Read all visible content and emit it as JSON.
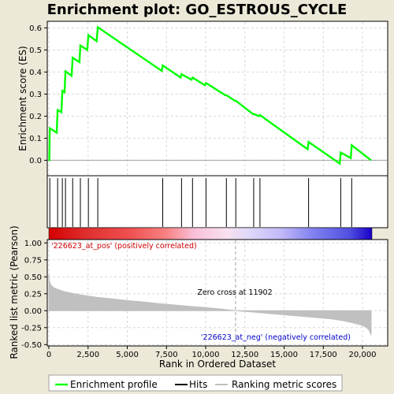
{
  "title": "Enrichment plot: GO_ESTROUS_CYCLE",
  "colors": {
    "background": "#ece9d8",
    "panel": "#ffffff",
    "es_line": "#00ff00",
    "hits": "#000000",
    "metric_fill": "#c0c0c0",
    "grid": "#d8d8d8",
    "zero_line": "#a0a0a0",
    "pos_text": "#cc0000",
    "neg_text": "#0000cc"
  },
  "chart_data": [
    {
      "type": "line",
      "panel": "enrichment-profile",
      "ylabel": "Enrichment score (ES)",
      "xlim": [
        0,
        20600
      ],
      "ylim": [
        -0.07,
        0.63
      ],
      "yticks": [
        "0.0",
        "0.1",
        "0.2",
        "0.3",
        "0.4",
        "0.5",
        "0.6"
      ],
      "grid": true,
      "series": [
        {
          "name": "Enrichment profile",
          "x": [
            0,
            30,
            60,
            500,
            560,
            800,
            860,
            1000,
            1060,
            1450,
            1520,
            1950,
            2010,
            2450,
            2520,
            3050,
            3120,
            7200,
            7260,
            8400,
            8460,
            9100,
            9160,
            9950,
            10020,
            11250,
            11320,
            11850,
            11920,
            13000,
            13060,
            13400,
            13460,
            16500,
            16560,
            18550,
            18610,
            19250,
            19310,
            20550
          ],
          "values": [
            0.0,
            0.0,
            0.145,
            0.125,
            0.228,
            0.218,
            0.315,
            0.308,
            0.403,
            0.383,
            0.465,
            0.445,
            0.52,
            0.5,
            0.567,
            0.54,
            0.603,
            0.405,
            0.43,
            0.375,
            0.39,
            0.365,
            0.375,
            0.34,
            0.35,
            0.295,
            0.295,
            0.27,
            0.27,
            0.21,
            0.21,
            0.2,
            0.205,
            0.05,
            0.083,
            -0.015,
            0.035,
            0.01,
            0.068,
            0.0
          ]
        }
      ]
    },
    {
      "type": "scatter",
      "panel": "hits",
      "series": [
        {
          "name": "Hits",
          "x": [
            60,
            560,
            860,
            1060,
            1520,
            2010,
            2520,
            3120,
            7260,
            8460,
            9160,
            10020,
            11320,
            11920,
            13060,
            13460,
            16560,
            18610,
            19310
          ]
        }
      ]
    },
    {
      "type": "area",
      "panel": "ranked-list-metric",
      "xlabel": "Rank in Ordered Dataset",
      "ylabel": "Ranked list metric (Pearson)",
      "xlim": [
        0,
        20600
      ],
      "ylim": [
        -0.52,
        1.05
      ],
      "xticks": [
        "0",
        "2,500",
        "5,000",
        "7,500",
        "10,000",
        "12,500",
        "15,000",
        "17,500",
        "20,000"
      ],
      "yticks": [
        "-0.50",
        "-0.25",
        "0.00",
        "0.25",
        "0.50",
        "0.75",
        "1.00"
      ],
      "grid": true,
      "series": [
        {
          "name": "Ranking metric scores",
          "x": [
            0,
            30,
            100,
            250,
            500,
            1000,
            2000,
            3000,
            4000,
            5000,
            6000,
            7000,
            8000,
            9000,
            10000,
            11000,
            11902,
            13000,
            14000,
            15000,
            16000,
            17000,
            18000,
            18800,
            19400,
            19900,
            20200,
            20400,
            20550
          ],
          "values": [
            0.55,
            0.45,
            0.39,
            0.35,
            0.32,
            0.28,
            0.235,
            0.2,
            0.175,
            0.15,
            0.13,
            0.105,
            0.085,
            0.065,
            0.045,
            0.025,
            0.0,
            -0.02,
            -0.04,
            -0.06,
            -0.08,
            -0.1,
            -0.12,
            -0.15,
            -0.18,
            -0.21,
            -0.24,
            -0.28,
            -0.36
          ]
        }
      ]
    }
  ],
  "annotations": {
    "pos_label": "'226623_at_pos' (positively correlated)",
    "neg_label": "'226623_at_neg' (negatively correlated)",
    "zero_cross": "Zero cross at 11902",
    "zero_cross_rank": 11902
  },
  "legend": {
    "items": [
      {
        "label": "Enrichment profile",
        "color": "#00ff00"
      },
      {
        "label": "Hits",
        "color": "#000000"
      },
      {
        "label": "Ranking metric scores",
        "color": "#c0c0c0"
      }
    ]
  }
}
